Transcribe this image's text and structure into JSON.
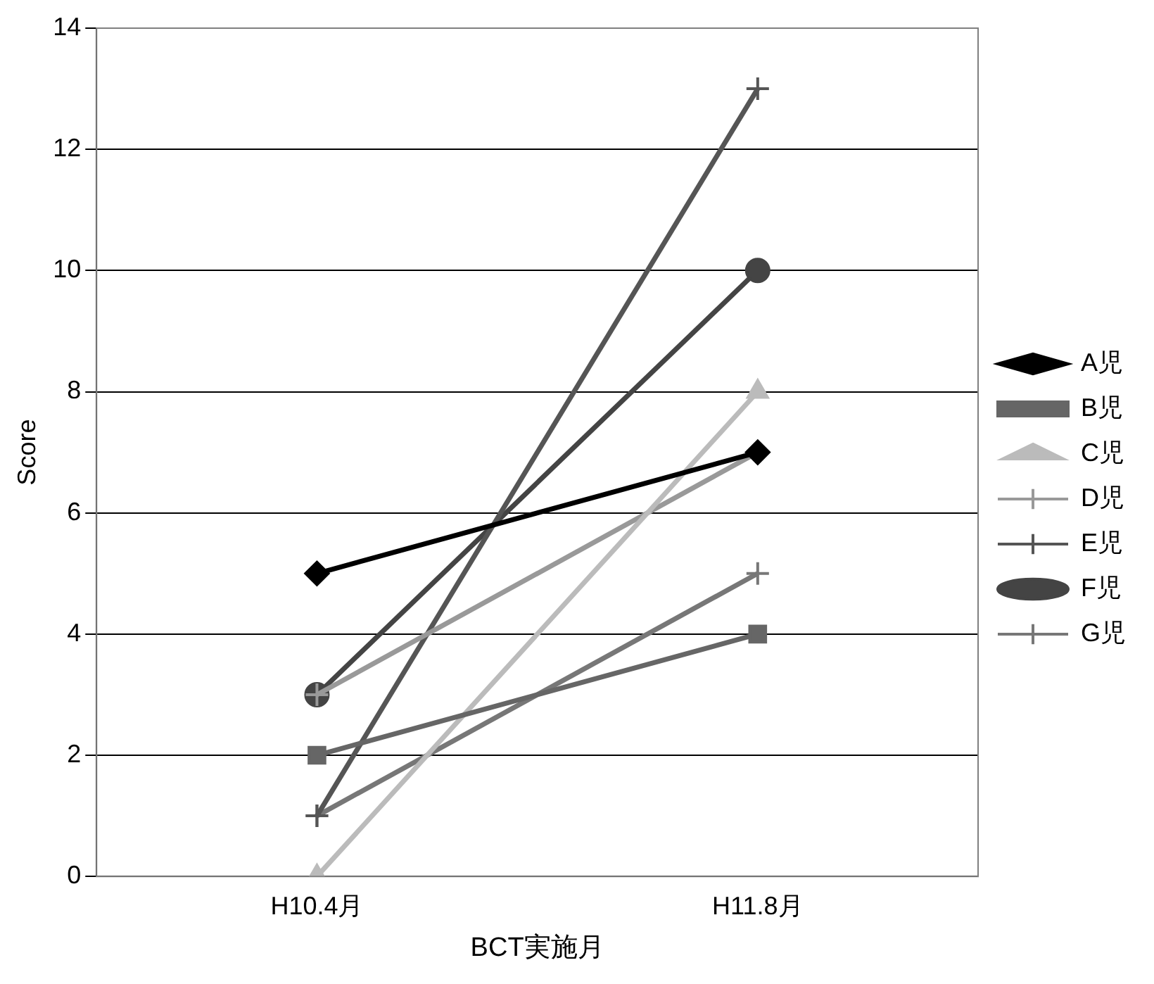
{
  "chart_data": {
    "type": "line",
    "xlabel": "BCT実施月",
    "ylabel": "Score",
    "categories": [
      "H10.4月",
      "H11.8月"
    ],
    "ylim": [
      0,
      14
    ],
    "yticks": [
      0,
      2,
      4,
      6,
      8,
      10,
      12,
      14
    ],
    "grid": "y",
    "legend": "right",
    "series": [
      {
        "name": "A児",
        "color": "#000000",
        "values": [
          5,
          7
        ],
        "marker": "diamond"
      },
      {
        "name": "B児",
        "color": "#666666",
        "values": [
          2,
          4
        ],
        "marker": "square"
      },
      {
        "name": "C児",
        "color": "#bbbbbb",
        "values": [
          0,
          8
        ],
        "marker": "triangle"
      },
      {
        "name": "D児",
        "color": "#999999",
        "values": [
          3,
          7
        ],
        "marker": "cross"
      },
      {
        "name": "E児",
        "color": "#555555",
        "values": [
          1,
          13
        ],
        "marker": "cross"
      },
      {
        "name": "F児",
        "color": "#444444",
        "values": [
          3,
          10
        ],
        "marker": "circle"
      },
      {
        "name": "G児",
        "color": "#777777",
        "values": [
          1,
          5
        ],
        "marker": "cross"
      }
    ]
  }
}
